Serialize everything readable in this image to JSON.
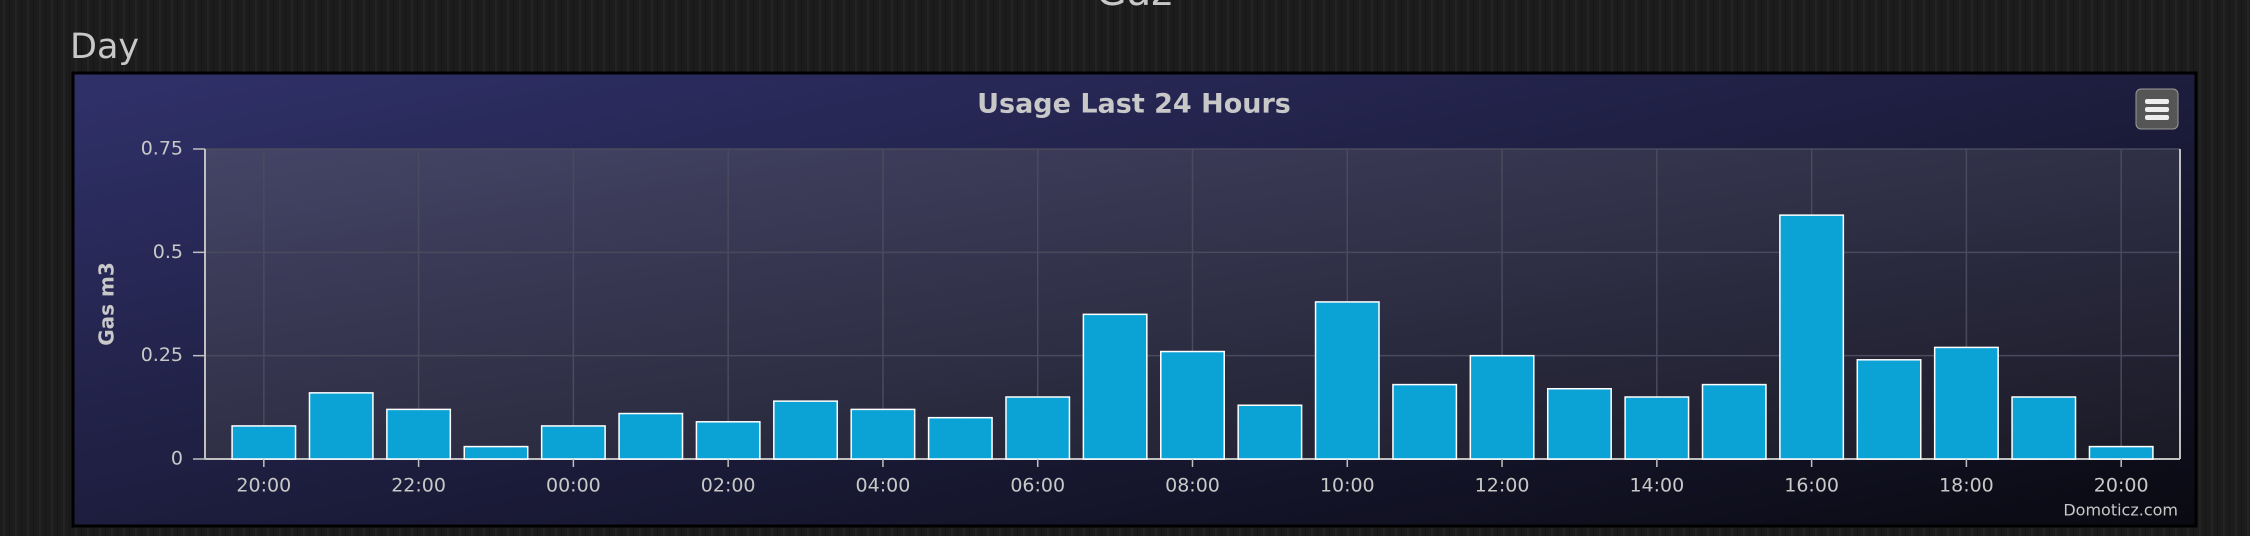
{
  "page_title": "Gaz",
  "section": "Day",
  "chart_data": {
    "type": "bar",
    "title": "Usage Last 24 Hours",
    "y_label": "Gas m3",
    "credits": "Domoticz.com",
    "categories": [
      "20:00",
      null,
      "22:00",
      null,
      "00:00",
      null,
      "02:00",
      null,
      "04:00",
      null,
      "06:00",
      null,
      "08:00",
      null,
      "10:00",
      null,
      "12:00",
      null,
      "14:00",
      null,
      "16:00",
      null,
      "18:00",
      null,
      "20:00"
    ],
    "values": [
      0.08,
      0.16,
      0.12,
      0.03,
      0.08,
      0.11,
      0.09,
      0.14,
      0.12,
      0.1,
      0.15,
      0.35,
      0.26,
      0.13,
      0.38,
      0.18,
      0.25,
      0.17,
      0.15,
      0.18,
      0.59,
      0.24,
      0.27,
      0.15,
      0.03
    ],
    "color": "#0ba2d6",
    "ylim": [
      0,
      0.75
    ],
    "yticks": [
      0,
      0.25,
      0.5,
      0.75
    ],
    "grid": true
  }
}
